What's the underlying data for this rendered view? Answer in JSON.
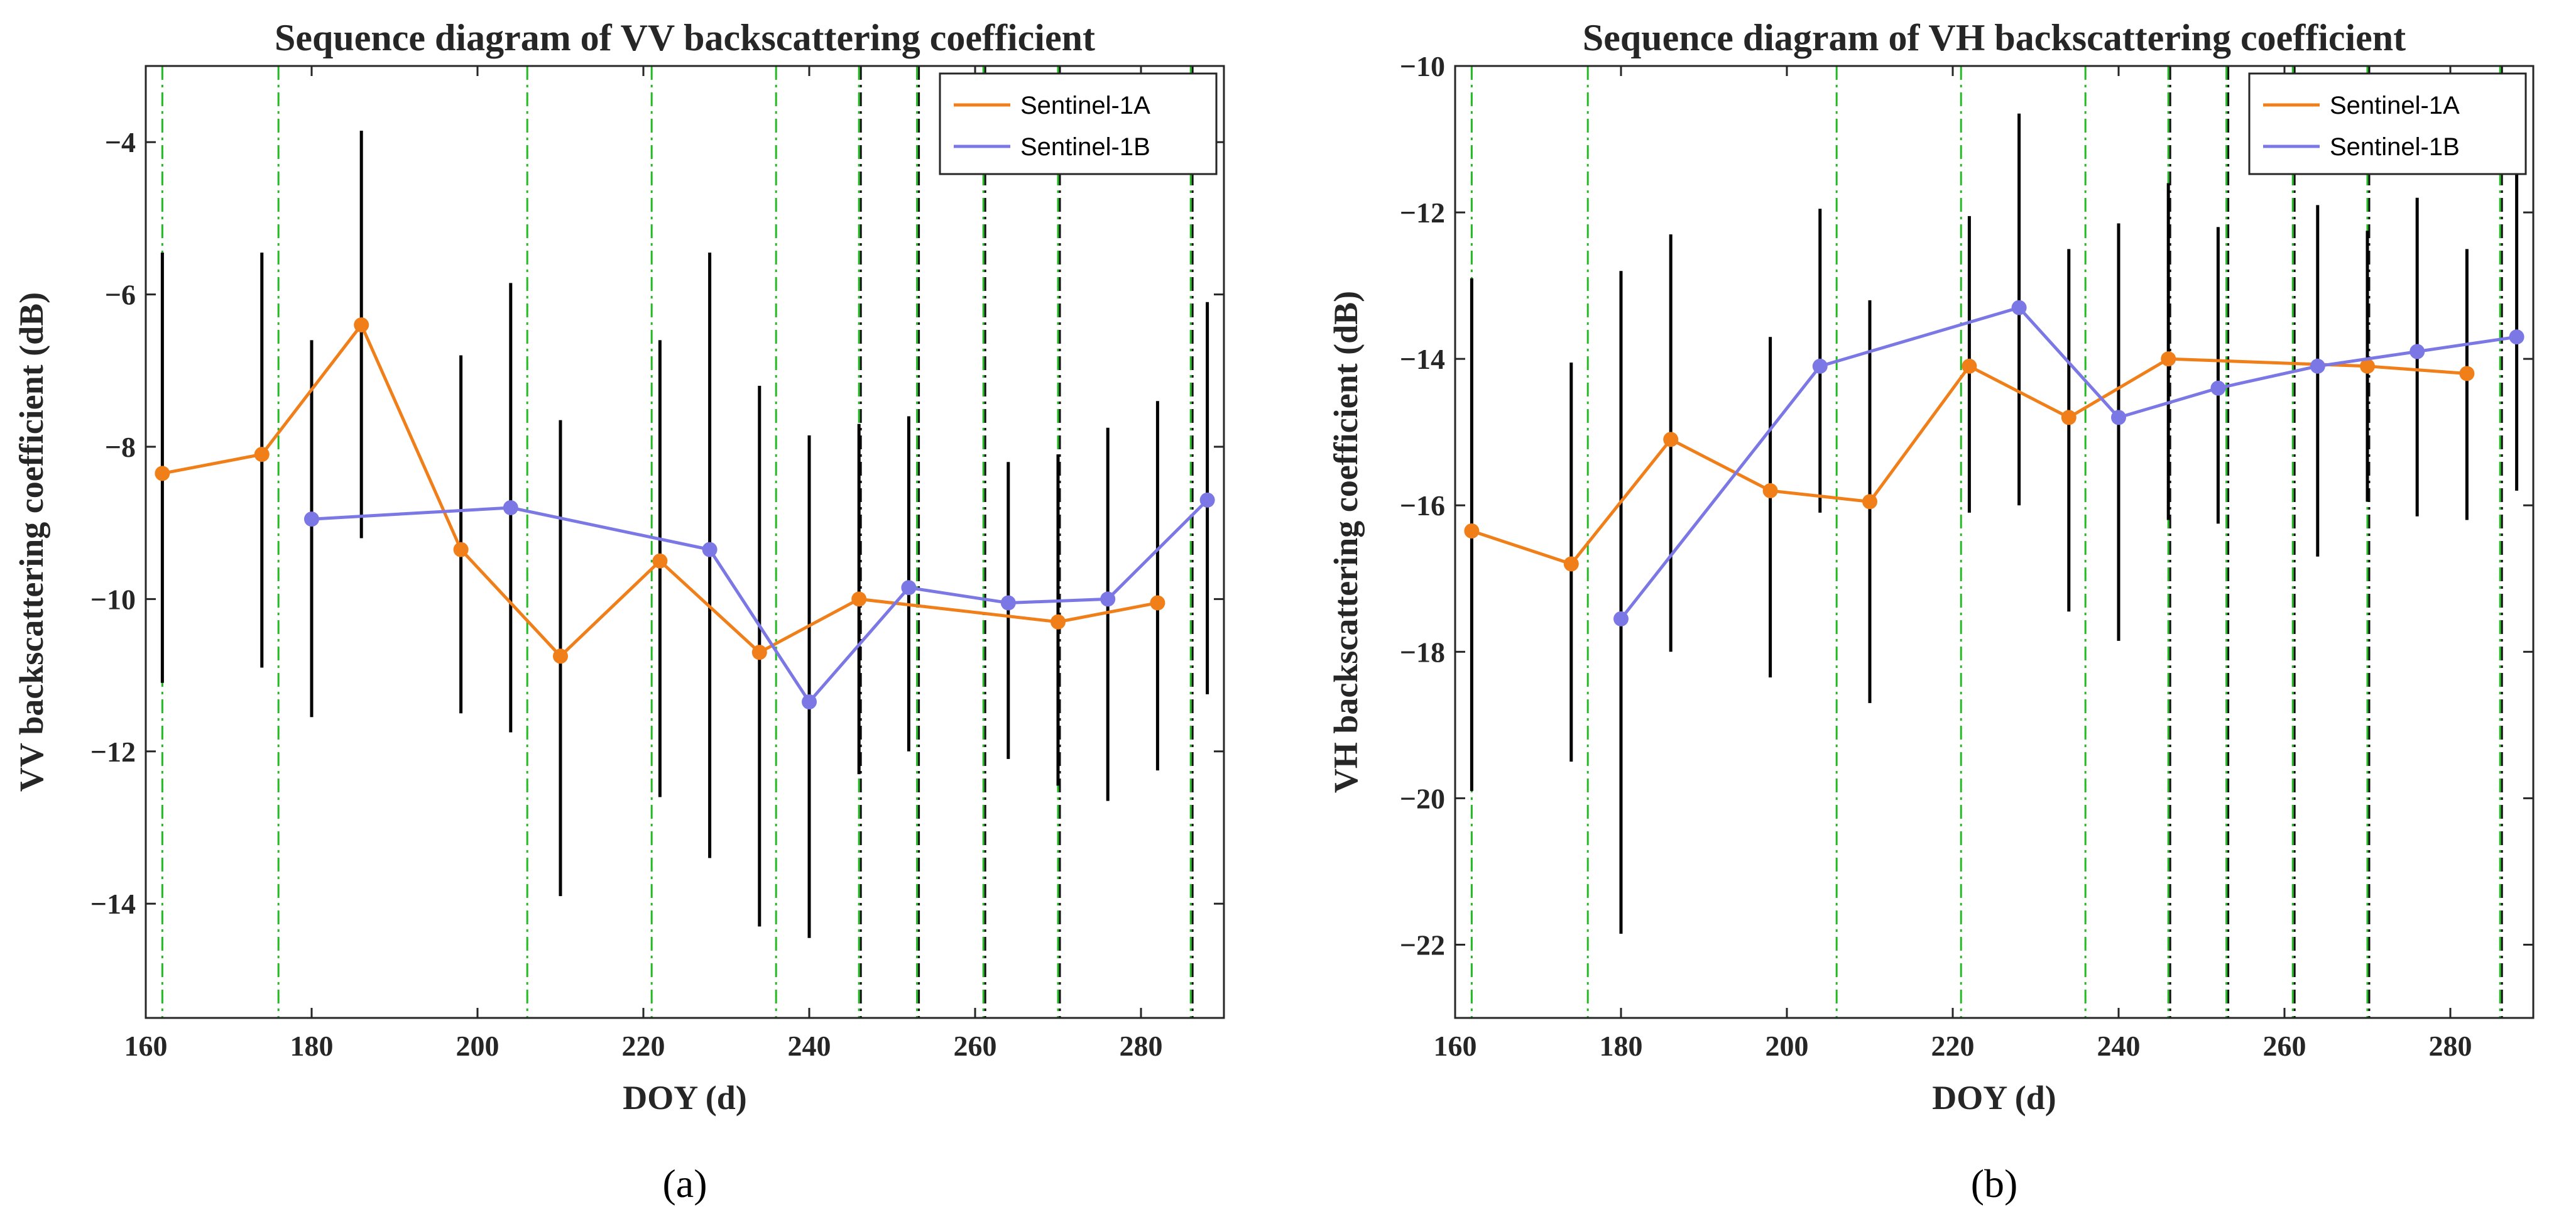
{
  "colors": {
    "sentinel1a": "#f07f1a",
    "sentinel1b": "#7b78e6",
    "errorbar": "#000000",
    "green_marker": "#22bb22",
    "black_marker": "#111111"
  },
  "chart_data": [
    {
      "type": "line",
      "caption": "(a)",
      "title": "Sequence diagram of VV backscattering coefficient",
      "xlabel": "DOY (d)",
      "ylabel": "VV backscattering coefficient (dB)",
      "xlim": [
        160,
        290
      ],
      "ylim": [
        -15.5,
        -3
      ],
      "xticks": [
        160,
        180,
        200,
        220,
        240,
        260,
        280
      ],
      "yticks": [
        -14,
        -12,
        -10,
        -8,
        -6,
        -4
      ],
      "xtick_labels": [
        "160",
        "180",
        "200",
        "220",
        "240",
        "260",
        "280"
      ],
      "ytick_labels": [
        "−14",
        "−12",
        "−10",
        "−8",
        "−6",
        "−4"
      ],
      "legend": [
        "Sentinel-1A",
        "Sentinel-1B"
      ],
      "legend_position": "top-right",
      "green_lines": [
        162,
        176,
        206,
        221,
        236,
        246,
        253,
        261,
        270,
        286
      ],
      "black_lines": [
        246,
        253,
        261,
        270,
        286
      ],
      "series": [
        {
          "name": "Sentinel-1A",
          "x": [
            162,
            174,
            186,
            198,
            210,
            222,
            234,
            246,
            270,
            282
          ],
          "y": [
            -8.35,
            -8.1,
            -6.4,
            -9.35,
            -10.75,
            -9.5,
            -10.7,
            -10.0,
            -10.3,
            -10.05
          ]
        },
        {
          "name": "Sentinel-1B",
          "x": [
            180,
            204,
            228,
            240,
            252,
            264,
            276,
            288
          ],
          "y": [
            -8.95,
            -8.8,
            -9.35,
            -11.35,
            -9.85,
            -10.05,
            -10.0,
            -8.7
          ]
        }
      ],
      "error_bars": [
        {
          "x": 162,
          "low": -11.1,
          "high": -5.45
        },
        {
          "x": 174,
          "low": -10.9,
          "high": -5.45
        },
        {
          "x": 180,
          "low": -11.55,
          "high": -6.6
        },
        {
          "x": 186,
          "low": -9.2,
          "high": -3.85
        },
        {
          "x": 198,
          "low": -11.5,
          "high": -6.8
        },
        {
          "x": 204,
          "low": -11.75,
          "high": -5.85
        },
        {
          "x": 210,
          "low": -13.9,
          "high": -7.65
        },
        {
          "x": 222,
          "low": -12.6,
          "high": -6.6
        },
        {
          "x": 228,
          "low": -13.4,
          "high": -5.45
        },
        {
          "x": 234,
          "low": -14.3,
          "high": -7.2
        },
        {
          "x": 240,
          "low": -14.45,
          "high": -7.85
        },
        {
          "x": 246,
          "low": -12.3,
          "high": -7.7
        },
        {
          "x": 252,
          "low": -12.0,
          "high": -7.6
        },
        {
          "x": 264,
          "low": -12.1,
          "high": -8.2
        },
        {
          "x": 270,
          "low": -12.45,
          "high": -8.1
        },
        {
          "x": 276,
          "low": -12.65,
          "high": -7.75
        },
        {
          "x": 282,
          "low": -12.25,
          "high": -7.4
        },
        {
          "x": 288,
          "low": -11.25,
          "high": -6.1
        }
      ]
    },
    {
      "type": "line",
      "caption": "(b)",
      "title": "Sequence diagram of VH backscattering coefficient",
      "xlabel": "DOY (d)",
      "ylabel": "VH backscattering coefficient (dB)",
      "xlim": [
        160,
        290
      ],
      "ylim": [
        -23,
        -10
      ],
      "xticks": [
        160,
        180,
        200,
        220,
        240,
        260,
        280
      ],
      "yticks": [
        -22,
        -20,
        -18,
        -16,
        -14,
        -12,
        -10
      ],
      "xtick_labels": [
        "160",
        "180",
        "200",
        "220",
        "240",
        "260",
        "280"
      ],
      "ytick_labels": [
        "−22",
        "−20",
        "−18",
        "−16",
        "−14",
        "−12",
        "−10"
      ],
      "legend": [
        "Sentinel-1A",
        "Sentinel-1B"
      ],
      "legend_position": "top-right",
      "green_lines": [
        162,
        176,
        206,
        221,
        236,
        246,
        253,
        261,
        270,
        286
      ],
      "black_lines": [
        246,
        253,
        261,
        270,
        286
      ],
      "series": [
        {
          "name": "Sentinel-1A",
          "x": [
            162,
            174,
            186,
            198,
            210,
            222,
            234,
            246,
            270,
            282
          ],
          "y": [
            -16.35,
            -16.8,
            -15.1,
            -15.8,
            -15.95,
            -14.1,
            -14.8,
            -14.0,
            -14.1,
            -14.2
          ]
        },
        {
          "name": "Sentinel-1B",
          "x": [
            180,
            204,
            228,
            240,
            252,
            264,
            276,
            288
          ],
          "y": [
            -17.55,
            -14.1,
            -13.3,
            -14.8,
            -14.4,
            -14.1,
            -13.9,
            -13.7
          ]
        }
      ],
      "error_bars": [
        {
          "x": 162,
          "low": -19.9,
          "high": -12.9
        },
        {
          "x": 174,
          "low": -19.5,
          "high": -14.05
        },
        {
          "x": 180,
          "low": -21.85,
          "high": -12.8
        },
        {
          "x": 186,
          "low": -18.0,
          "high": -12.3
        },
        {
          "x": 198,
          "low": -18.35,
          "high": -13.7
        },
        {
          "x": 204,
          "low": -16.1,
          "high": -11.95
        },
        {
          "x": 210,
          "low": -18.7,
          "high": -13.2
        },
        {
          "x": 222,
          "low": -16.1,
          "high": -12.05
        },
        {
          "x": 228,
          "low": -16.0,
          "high": -10.65
        },
        {
          "x": 234,
          "low": -17.45,
          "high": -12.5
        },
        {
          "x": 240,
          "low": -17.85,
          "high": -12.15
        },
        {
          "x": 246,
          "low": -16.2,
          "high": -11.6
        },
        {
          "x": 252,
          "low": -16.25,
          "high": -12.2
        },
        {
          "x": 264,
          "low": -16.7,
          "high": -11.9
        },
        {
          "x": 270,
          "low": -15.95,
          "high": -12.25
        },
        {
          "x": 276,
          "low": -16.15,
          "high": -11.8
        },
        {
          "x": 282,
          "low": -16.2,
          "high": -12.5
        },
        {
          "x": 288,
          "low": -15.8,
          "high": -11.4
        }
      ]
    }
  ]
}
